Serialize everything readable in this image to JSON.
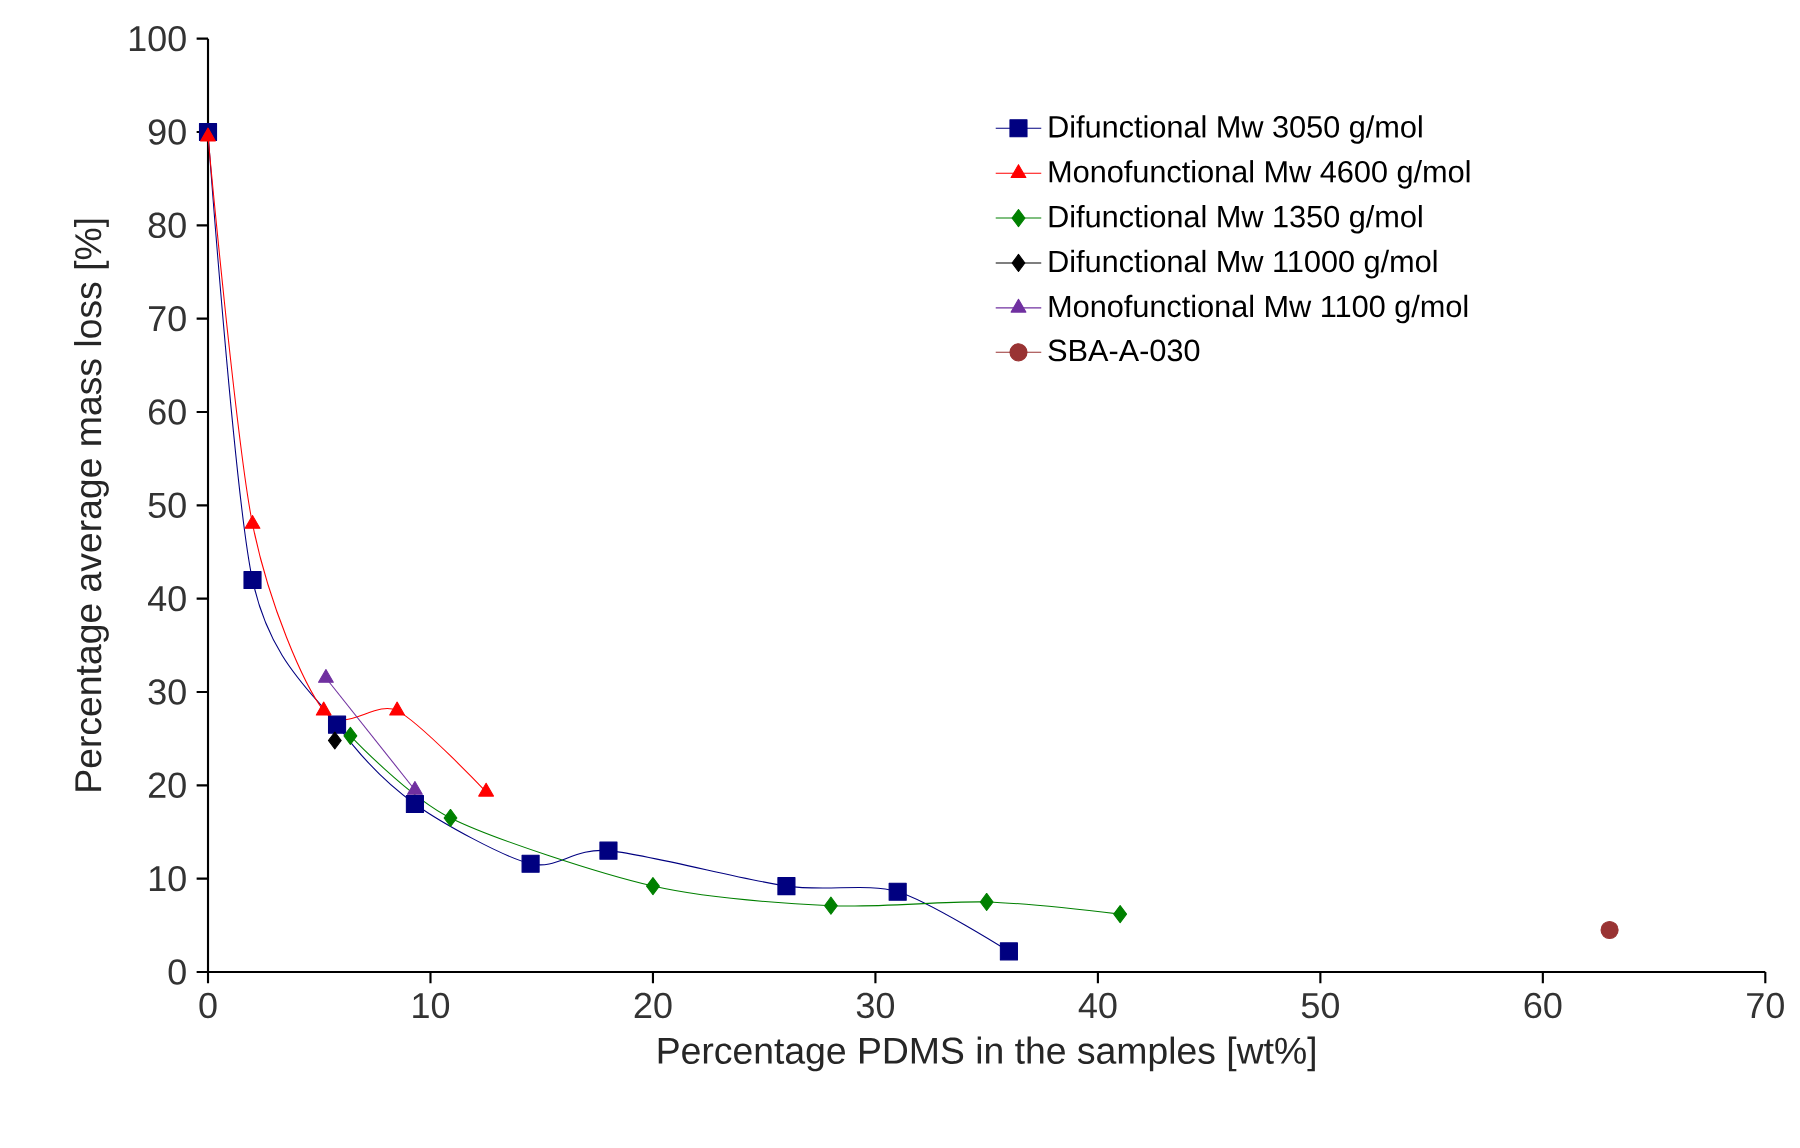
{
  "chart_data": {
    "type": "line",
    "xlabel": "Percentage PDMS in the samples [wt%]",
    "ylabel": "Percentage average mass loss [%]",
    "xlim": [
      0,
      70
    ],
    "xticks": [
      0,
      10,
      20,
      30,
      40,
      50,
      60,
      70
    ],
    "ylim": [
      0,
      100
    ],
    "yticks": [
      0,
      10,
      20,
      30,
      40,
      50,
      60,
      70,
      80,
      90,
      100
    ],
    "grid": false,
    "legend": "top right",
    "line_style": "solid",
    "series": [
      {
        "name": "Difunctional Mw 3050 g/mol",
        "color": "#000080",
        "marker": "square",
        "x": [
          0,
          2,
          5.8,
          9.3,
          14.5,
          18,
          26,
          31,
          36
        ],
        "values": [
          90,
          42,
          26.5,
          18,
          11.6,
          13,
          9.2,
          8.6,
          2.2
        ]
      },
      {
        "name": "Monofunctional Mw 4600 g/mol",
        "color": "#ff0000",
        "marker": "triangle",
        "x": [
          0,
          2,
          5.2,
          8.5,
          12.5
        ],
        "values": [
          89.5,
          48,
          28,
          28,
          19.3
        ]
      },
      {
        "name": "Difunctional Mw 1350 g/mol",
        "color": "#008000",
        "marker": "diamond",
        "x": [
          6.4,
          10.9,
          20,
          28,
          35,
          41
        ],
        "values": [
          25.3,
          16.5,
          9.2,
          7.1,
          7.5,
          6.2
        ]
      },
      {
        "name": "Difunctional Mw 11000 g/mol",
        "color": "#000000",
        "marker": "diamond",
        "x": [
          5.7
        ],
        "values": [
          24.8
        ]
      },
      {
        "name": "Monofunctional Mw 1100 g/mol",
        "color": "#7030a0",
        "marker": "triangle",
        "x": [
          5.3,
          9.3
        ],
        "values": [
          31.5,
          19.5
        ]
      },
      {
        "name": "SBA-A-030",
        "color": "#993333",
        "marker": "circle",
        "x": [
          63
        ],
        "values": [
          4.5
        ]
      }
    ]
  }
}
